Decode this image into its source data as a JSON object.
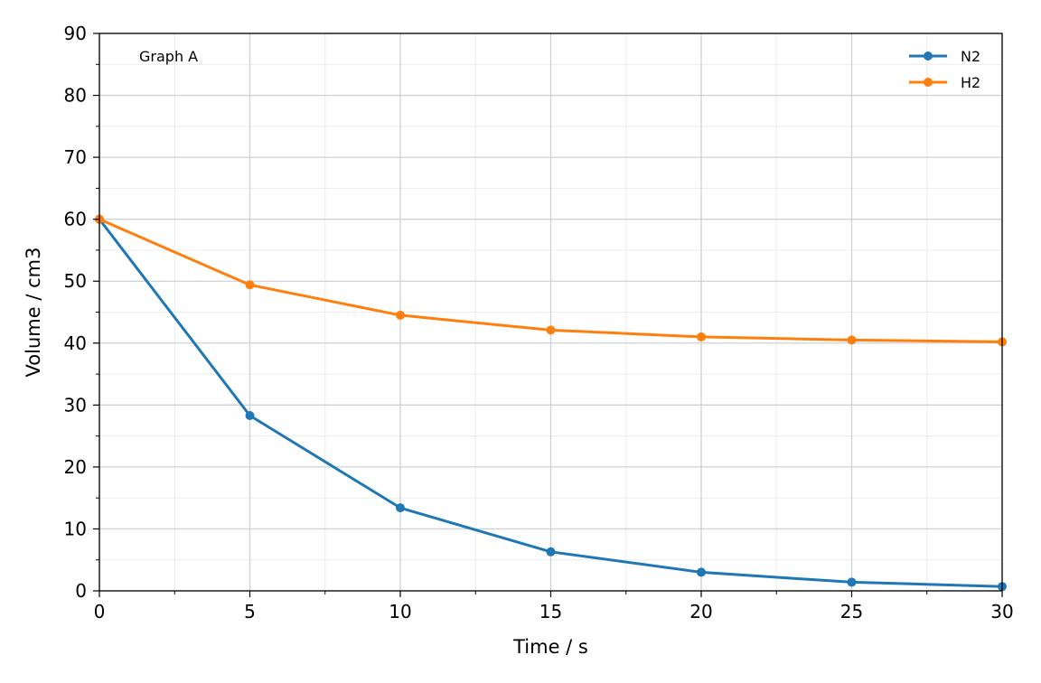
{
  "chart_data": {
    "type": "line",
    "annotation": "Graph A",
    "xlabel": "Time / s",
    "ylabel": "Volume / cm3",
    "xlim": [
      0,
      30
    ],
    "ylim": [
      0,
      90
    ],
    "x_ticks": [
      0,
      5,
      10,
      15,
      20,
      25,
      30
    ],
    "y_ticks": [
      0,
      10,
      20,
      30,
      40,
      50,
      60,
      70,
      80,
      90
    ],
    "x_tick_labels": [
      "0",
      "5",
      "10",
      "15",
      "20",
      "25",
      "30"
    ],
    "y_tick_labels": [
      "0",
      "10",
      "20",
      "30",
      "40",
      "50",
      "60",
      "70",
      "80",
      "90"
    ],
    "grid": true,
    "minor_grid": true,
    "legend_position": "top-right",
    "x": [
      0,
      5,
      10,
      15,
      20,
      25,
      30
    ],
    "series": [
      {
        "name": "N2",
        "color": "#1f77b4",
        "values": [
          60,
          28.3,
          13.4,
          6.3,
          3.0,
          1.4,
          0.7
        ]
      },
      {
        "name": "H2",
        "color": "#ff7f0e",
        "values": [
          60,
          49.4,
          44.5,
          42.1,
          41.0,
          40.5,
          40.2
        ]
      }
    ]
  }
}
